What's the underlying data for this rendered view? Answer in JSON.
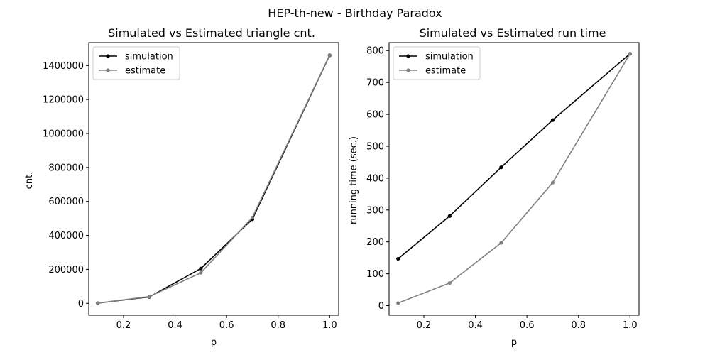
{
  "figure": {
    "suptitle": "HEP-th-new - Birthday Paradox"
  },
  "chart_data": [
    {
      "type": "line",
      "title": "Simulated vs Estimated triangle cnt.",
      "xlabel": "p",
      "ylabel": "cnt.",
      "x": [
        0.1,
        0.3,
        0.5,
        0.7,
        1.0
      ],
      "xlim": [
        0.065,
        1.035
      ],
      "ylim": [
        -70000,
        1535000
      ],
      "xticks": [
        0.2,
        0.4,
        0.6,
        0.8,
        1.0
      ],
      "xtick_labels": [
        "0.2",
        "0.4",
        "0.6",
        "0.8",
        "1.0"
      ],
      "yticks": [
        0,
        200000,
        400000,
        600000,
        800000,
        1000000,
        1200000,
        1400000
      ],
      "ytick_labels": [
        "0",
        "200000",
        "400000",
        "600000",
        "800000",
        "1000000",
        "1200000",
        "1400000"
      ],
      "legend_position": "top-left",
      "series": [
        {
          "name": "simulation",
          "color": "#000000",
          "values": [
            1000,
            38000,
            205000,
            495000,
            1460000
          ]
        },
        {
          "name": "estimate",
          "color": "#808080",
          "values": [
            1500,
            40000,
            180000,
            505000,
            1462000
          ]
        }
      ]
    },
    {
      "type": "line",
      "title": "Simulated vs Estimated run time",
      "xlabel": "p",
      "ylabel": "running time (sec.)",
      "x": [
        0.1,
        0.3,
        0.5,
        0.7,
        1.0
      ],
      "xlim": [
        0.065,
        1.035
      ],
      "ylim": [
        -30,
        825
      ],
      "xticks": [
        0.2,
        0.4,
        0.6,
        0.8,
        1.0
      ],
      "xtick_labels": [
        "0.2",
        "0.4",
        "0.6",
        "0.8",
        "1.0"
      ],
      "yticks": [
        0,
        100,
        200,
        300,
        400,
        500,
        600,
        700,
        800
      ],
      "ytick_labels": [
        "0",
        "100",
        "200",
        "300",
        "400",
        "500",
        "600",
        "700",
        "800"
      ],
      "legend_position": "top-left",
      "series": [
        {
          "name": "simulation",
          "color": "#000000",
          "values": [
            147,
            281,
            434,
            582,
            790
          ]
        },
        {
          "name": "estimate",
          "color": "#808080",
          "values": [
            8,
            71,
            197,
            386,
            790
          ]
        }
      ]
    }
  ]
}
